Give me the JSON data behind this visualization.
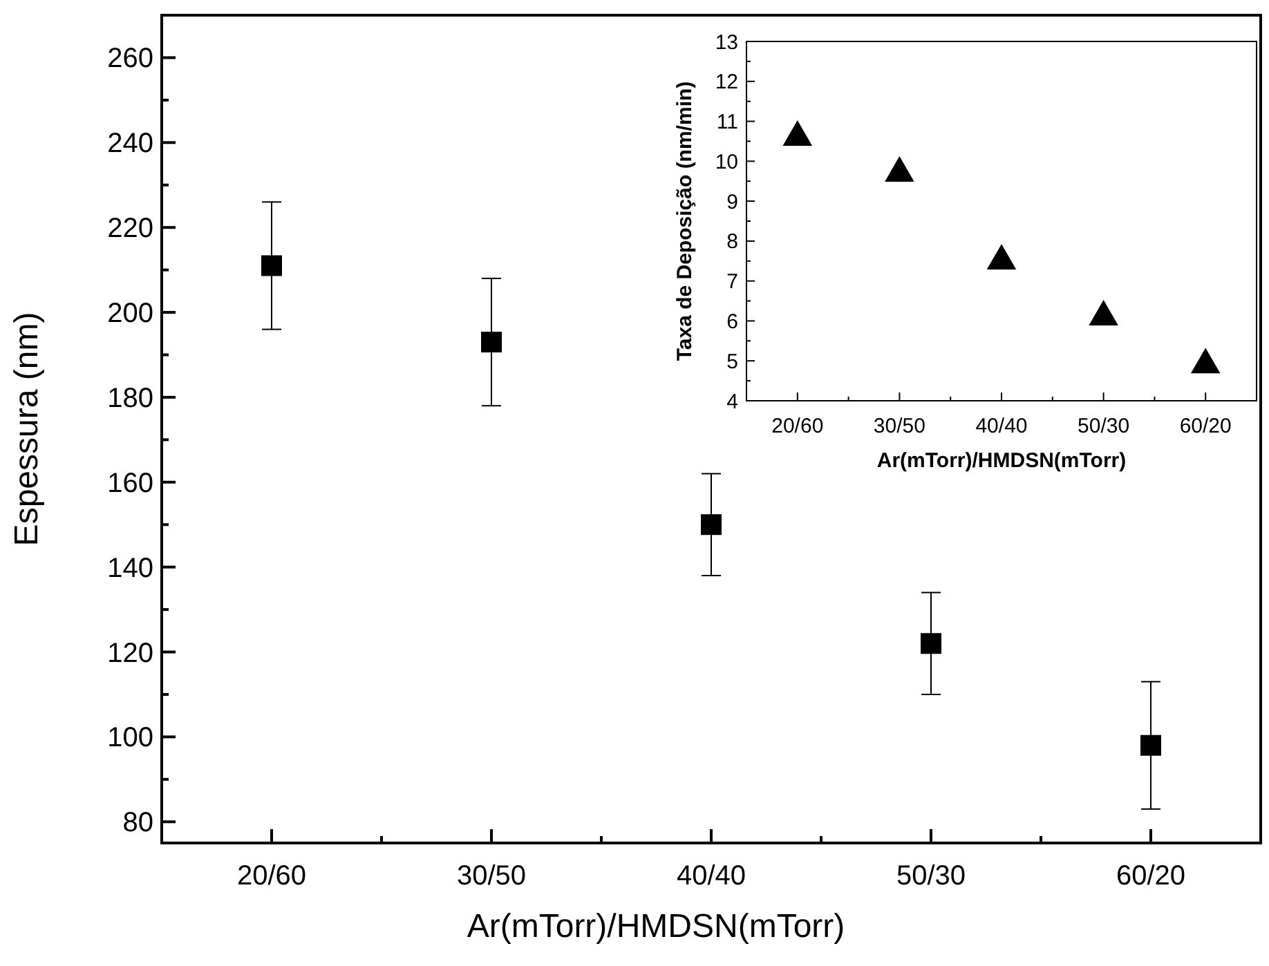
{
  "chart_data": [
    {
      "type": "scatter",
      "xlabel": "Ar(mTorr)/HMDSN(mTorr)",
      "ylabel": "Espessura (nm)",
      "categories": [
        "20/60",
        "30/50",
        "40/40",
        "50/30",
        "60/20"
      ],
      "series": [
        {
          "color": "#000000",
          "values": [
            211,
            193,
            150,
            122,
            98
          ],
          "errors": [
            15,
            15,
            12,
            12,
            15
          ]
        }
      ],
      "ylim": [
        75,
        270
      ],
      "yticks": [
        80,
        100,
        120,
        140,
        160,
        180,
        200,
        220,
        240,
        260
      ],
      "marker": "square"
    },
    {
      "type": "scatter",
      "xlabel": "Ar(mTorr)/HMDSN(mTorr)",
      "ylabel": "Taxa de Deposição (nm/min)",
      "categories": [
        "20/60",
        "30/50",
        "40/40",
        "50/30",
        "60/20"
      ],
      "series": [
        {
          "color": "#000000",
          "values": [
            10.6,
            9.7,
            7.5,
            6.1,
            4.9
          ]
        }
      ],
      "ylim": [
        4,
        13
      ],
      "yticks": [
        4,
        5,
        6,
        7,
        8,
        9,
        10,
        11,
        12,
        13
      ],
      "marker": "triangle"
    }
  ]
}
